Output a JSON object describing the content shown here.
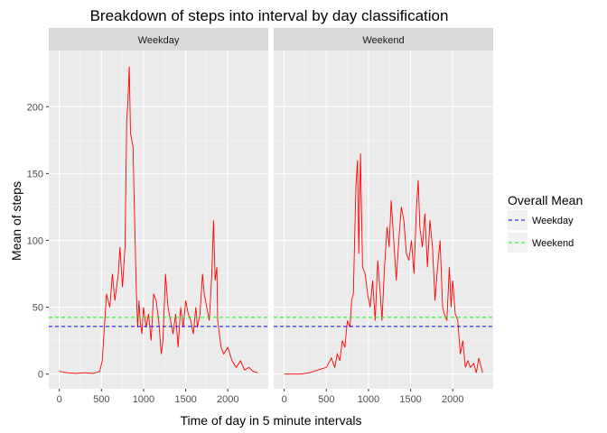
{
  "chart_data": {
    "type": "line",
    "title": "Breakdown of steps into interval by day classification",
    "xlabel": "Time of day in 5 minute intervals",
    "ylabel": "Mean of steps",
    "xlim": [
      -125,
      2480
    ],
    "ylim": [
      -11,
      242
    ],
    "x_ticks": [
      0,
      500,
      1000,
      1500,
      2000
    ],
    "y_ticks": [
      0,
      50,
      100,
      150,
      200
    ],
    "grid": true,
    "line_color": "#ff0000",
    "panels": [
      {
        "name": "Weekday",
        "mean": 35.6,
        "points": [
          [
            0,
            2
          ],
          [
            100,
            1
          ],
          [
            200,
            0.5
          ],
          [
            300,
            1
          ],
          [
            400,
            0.5
          ],
          [
            480,
            2
          ],
          [
            510,
            10
          ],
          [
            530,
            30
          ],
          [
            560,
            60
          ],
          [
            600,
            50
          ],
          [
            630,
            75
          ],
          [
            660,
            55
          ],
          [
            700,
            75
          ],
          [
            720,
            95
          ],
          [
            750,
            65
          ],
          [
            780,
            95
          ],
          [
            800,
            190
          ],
          [
            815,
            205
          ],
          [
            830,
            230
          ],
          [
            845,
            180
          ],
          [
            860,
            175
          ],
          [
            875,
            170
          ],
          [
            885,
            140
          ],
          [
            900,
            100
          ],
          [
            915,
            60
          ],
          [
            930,
            35
          ],
          [
            945,
            55
          ],
          [
            960,
            40
          ],
          [
            980,
            30
          ],
          [
            1000,
            50
          ],
          [
            1030,
            35
          ],
          [
            1060,
            45
          ],
          [
            1090,
            25
          ],
          [
            1120,
            60
          ],
          [
            1150,
            55
          ],
          [
            1180,
            40
          ],
          [
            1210,
            15
          ],
          [
            1230,
            25
          ],
          [
            1260,
            75
          ],
          [
            1290,
            50
          ],
          [
            1320,
            40
          ],
          [
            1350,
            30
          ],
          [
            1380,
            45
          ],
          [
            1410,
            20
          ],
          [
            1440,
            50
          ],
          [
            1470,
            35
          ],
          [
            1500,
            55
          ],
          [
            1530,
            45
          ],
          [
            1560,
            40
          ],
          [
            1590,
            30
          ],
          [
            1620,
            50
          ],
          [
            1640,
            35
          ],
          [
            1670,
            45
          ],
          [
            1700,
            75
          ],
          [
            1720,
            60
          ],
          [
            1750,
            50
          ],
          [
            1780,
            40
          ],
          [
            1810,
            75
          ],
          [
            1830,
            115
          ],
          [
            1850,
            70
          ],
          [
            1870,
            80
          ],
          [
            1880,
            40
          ],
          [
            1900,
            30
          ],
          [
            1920,
            20
          ],
          [
            1950,
            15
          ],
          [
            2000,
            20
          ],
          [
            2050,
            10
          ],
          [
            2100,
            5
          ],
          [
            2150,
            10
          ],
          [
            2200,
            3
          ],
          [
            2250,
            5
          ],
          [
            2300,
            2
          ],
          [
            2355,
            1
          ]
        ]
      },
      {
        "name": "Weekend",
        "mean": 42.4,
        "points": [
          [
            0,
            0
          ],
          [
            200,
            0
          ],
          [
            300,
            1
          ],
          [
            400,
            3
          ],
          [
            500,
            5
          ],
          [
            560,
            12
          ],
          [
            600,
            5
          ],
          [
            630,
            15
          ],
          [
            660,
            10
          ],
          [
            690,
            25
          ],
          [
            720,
            20
          ],
          [
            750,
            40
          ],
          [
            780,
            35
          ],
          [
            800,
            55
          ],
          [
            820,
            60
          ],
          [
            835,
            100
          ],
          [
            850,
            140
          ],
          [
            870,
            160
          ],
          [
            885,
            90
          ],
          [
            905,
            165
          ],
          [
            930,
            80
          ],
          [
            960,
            75
          ],
          [
            990,
            60
          ],
          [
            1020,
            50
          ],
          [
            1050,
            70
          ],
          [
            1080,
            40
          ],
          [
            1110,
            85
          ],
          [
            1140,
            60
          ],
          [
            1160,
            40
          ],
          [
            1190,
            80
          ],
          [
            1220,
            110
          ],
          [
            1245,
            95
          ],
          [
            1270,
            130
          ],
          [
            1300,
            100
          ],
          [
            1330,
            70
          ],
          [
            1360,
            100
          ],
          [
            1390,
            125
          ],
          [
            1420,
            115
          ],
          [
            1450,
            90
          ],
          [
            1480,
            85
          ],
          [
            1510,
            100
          ],
          [
            1540,
            75
          ],
          [
            1570,
            125
          ],
          [
            1590,
            145
          ],
          [
            1610,
            110
          ],
          [
            1640,
            95
          ],
          [
            1670,
            120
          ],
          [
            1700,
            80
          ],
          [
            1730,
            115
          ],
          [
            1760,
            95
          ],
          [
            1790,
            55
          ],
          [
            1820,
            80
          ],
          [
            1850,
            100
          ],
          [
            1880,
            50
          ],
          [
            1900,
            45
          ],
          [
            1930,
            40
          ],
          [
            1960,
            80
          ],
          [
            1980,
            50
          ],
          [
            2000,
            70
          ],
          [
            2030,
            45
          ],
          [
            2060,
            40
          ],
          [
            2090,
            15
          ],
          [
            2120,
            25
          ],
          [
            2150,
            5
          ],
          [
            2180,
            10
          ],
          [
            2210,
            5
          ],
          [
            2250,
            8
          ],
          [
            2280,
            1
          ],
          [
            2310,
            12
          ],
          [
            2355,
            1
          ]
        ]
      }
    ],
    "legend": {
      "title": "Overall Mean",
      "position": "right",
      "items": [
        {
          "label": "Weekday",
          "color": "#0000ff",
          "style": "dashed"
        },
        {
          "label": "Weekend",
          "color": "#00ff00",
          "style": "dashed"
        }
      ]
    }
  }
}
